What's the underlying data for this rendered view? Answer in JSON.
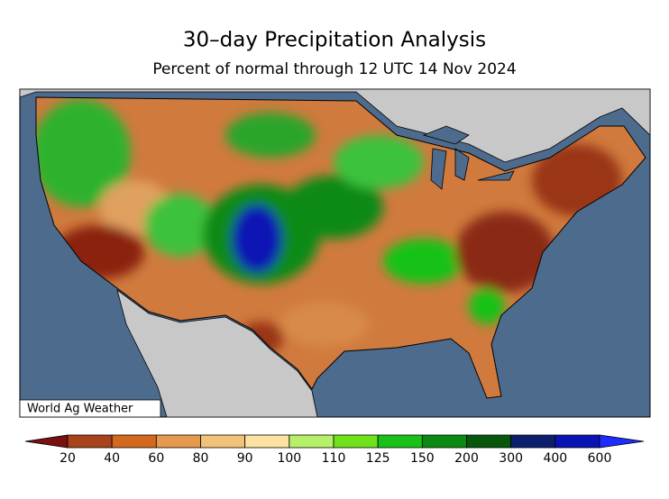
{
  "title": "30–day Precipitation Analysis",
  "subtitle": "Percent of normal through 12 UTC 14 Nov 2024",
  "credit": "World Ag Weather",
  "legend": {
    "labels": [
      20,
      40,
      60,
      80,
      90,
      100,
      110,
      125,
      150,
      200,
      300,
      400,
      600
    ],
    "colors": [
      "#7b1010",
      "#a8431b",
      "#d2691f",
      "#e59a4e",
      "#f3c27a",
      "#fde3a2",
      "#b6f06a",
      "#6fe21c",
      "#19c219",
      "#0a8a12",
      "#07560c",
      "#0b1f6e",
      "#0a13b4",
      "#1e2dff"
    ]
  }
}
